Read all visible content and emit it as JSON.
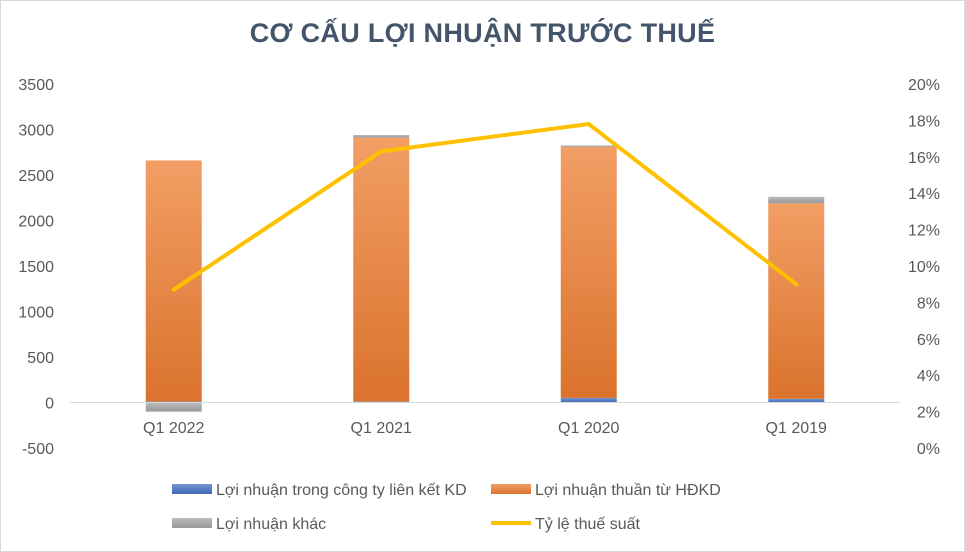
{
  "chart_data": {
    "type": "bar",
    "title": "CƠ CẤU LỢI NHUẬN TRƯỚC THUẾ",
    "stacked": true,
    "categories": [
      "Q1 2022",
      "Q1 2021",
      "Q1 2020",
      "Q1 2019"
    ],
    "series": [
      {
        "name": "Lợi nhuận trong công ty liên kết KD",
        "kind": "bar",
        "axis": "left",
        "color": "#4472c4",
        "values": [
          10,
          10,
          50,
          40
        ]
      },
      {
        "name": "Lợi nhuận thuần từ HĐKD",
        "kind": "bar",
        "axis": "left",
        "color": "#ed7d31",
        "values": [
          2650,
          2900,
          2760,
          2150
        ]
      },
      {
        "name": "Lợi nhuận khác",
        "kind": "bar",
        "axis": "left",
        "color": "#a5a5a5",
        "values": [
          -100,
          30,
          15,
          70
        ]
      },
      {
        "name": "Tỷ lệ thuế suất",
        "kind": "line",
        "axis": "right",
        "color": "#ffc000",
        "values": [
          0.087,
          0.163,
          0.178,
          0.09
        ]
      }
    ],
    "y_left": {
      "min": -500,
      "max": 3500,
      "step": 500,
      "ticks": [
        "-500",
        "0",
        "500",
        "1000",
        "1500",
        "2000",
        "2500",
        "3000",
        "3500"
      ]
    },
    "y_right": {
      "min": 0,
      "max": 0.2,
      "step": 0.02,
      "ticks": [
        "0%",
        "2%",
        "4%",
        "6%",
        "8%",
        "10%",
        "12%",
        "14%",
        "16%",
        "18%",
        "20%"
      ]
    },
    "grid": false,
    "legend_position": "bottom"
  }
}
